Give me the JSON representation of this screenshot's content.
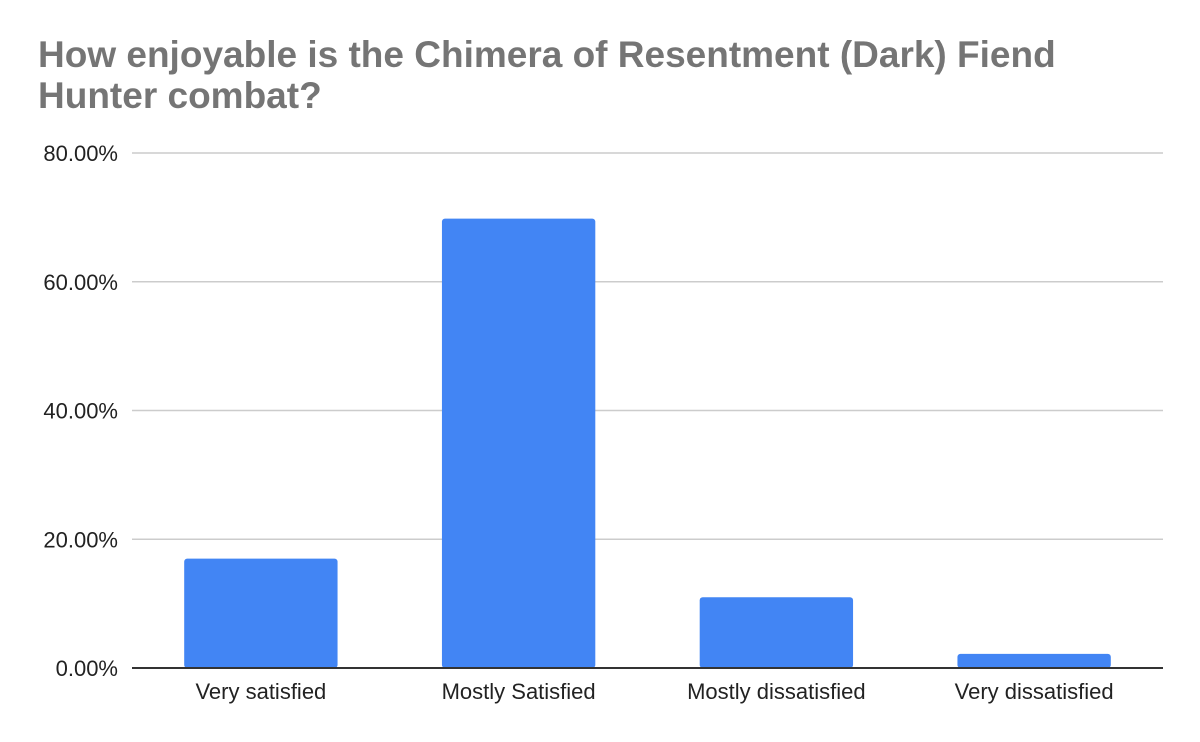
{
  "chart_data": {
    "type": "bar",
    "title": "How enjoyable is the Chimera of Resentment (Dark) Fiend Hunter combat?",
    "xlabel": "",
    "ylabel": "",
    "categories": [
      "Very satisfied",
      "Mostly Satisfied",
      "Mostly dissatisfied",
      "Very dissatisfied"
    ],
    "values": [
      17.0,
      69.8,
      11.0,
      2.2
    ],
    "value_unit": "%",
    "ylim": [
      0,
      80
    ],
    "yticks": [
      0,
      20,
      40,
      60,
      80
    ],
    "ytick_labels": [
      "0.00%",
      "20.00%",
      "40.00%",
      "60.00%",
      "80.00%"
    ],
    "grid": true,
    "legend": "none",
    "colors": {
      "bar": "#4285f4",
      "grid": "#cccccc",
      "axis": "#333333",
      "title": "#757575"
    }
  }
}
